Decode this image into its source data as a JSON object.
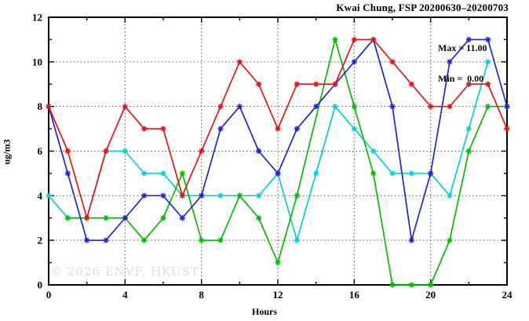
{
  "header": {
    "title": "Kwai Chung, FSP 20200630–20200703"
  },
  "annotations": {
    "max_label": "Max = 11.00",
    "min_label": "Min =  0.00"
  },
  "watermark": "© 2026 ENVF, HKUST",
  "colors": {
    "background": "#ffffff",
    "axis": "#000000",
    "grid": "#555555",
    "watermark": "#dcdcdc",
    "series_red": "#e41414",
    "series_blue": "#2222d6",
    "series_green": "#00bd00",
    "series_cyan": "#00d2d2"
  },
  "chart_data": {
    "type": "line",
    "title": "Kwai Chung, FSP 20200630–20200703",
    "xlabel": "Hours",
    "ylabel": "ug/m3",
    "xlim": [
      0,
      24
    ],
    "ylim": [
      0,
      12
    ],
    "x_major_ticks": [
      0,
      4,
      8,
      12,
      16,
      20,
      24
    ],
    "x_minor_ticks": [
      2,
      6,
      10,
      14,
      18,
      22
    ],
    "y_major_ticks": [
      0,
      2,
      4,
      6,
      8,
      10,
      12
    ],
    "y_minor_ticks": [
      1,
      3,
      5,
      7,
      9,
      11
    ],
    "grid": true,
    "legend": "none",
    "marker": "asterisk",
    "stat_max": 11.0,
    "stat_min": 0.0,
    "x": [
      0,
      1,
      2,
      3,
      4,
      5,
      6,
      7,
      8,
      9,
      10,
      11,
      12,
      13,
      14,
      15,
      16,
      17,
      18,
      19,
      20,
      21,
      22,
      23,
      24
    ],
    "series": [
      {
        "name": "cyan",
        "color": "#00d2d2",
        "values": [
          4,
          3,
          3,
          6,
          6,
          5,
          5,
          4,
          4,
          4,
          4,
          4,
          5,
          2,
          5,
          8,
          7,
          6,
          5,
          5,
          5,
          4,
          7,
          10,
          null
        ]
      },
      {
        "name": "green",
        "color": "#00bd00",
        "values": [
          null,
          3,
          3,
          3,
          3,
          2,
          3,
          5,
          2,
          2,
          4,
          3,
          1,
          4,
          null,
          11,
          8,
          5,
          0,
          0,
          0,
          2,
          6,
          8,
          8
        ]
      },
      {
        "name": "blue",
        "color": "#2222d6",
        "values": [
          8,
          5,
          2,
          2,
          3,
          4,
          4,
          3,
          4,
          7,
          8,
          6,
          5,
          7,
          8,
          9,
          10,
          11,
          8,
          2,
          5,
          10,
          11,
          11,
          8
        ]
      },
      {
        "name": "red",
        "color": "#e41414",
        "values": [
          8,
          6,
          3,
          6,
          8,
          7,
          7,
          4,
          6,
          8,
          10,
          9,
          7,
          9,
          9,
          9,
          11,
          11,
          10,
          9,
          8,
          8,
          9,
          9,
          7
        ]
      }
    ]
  }
}
